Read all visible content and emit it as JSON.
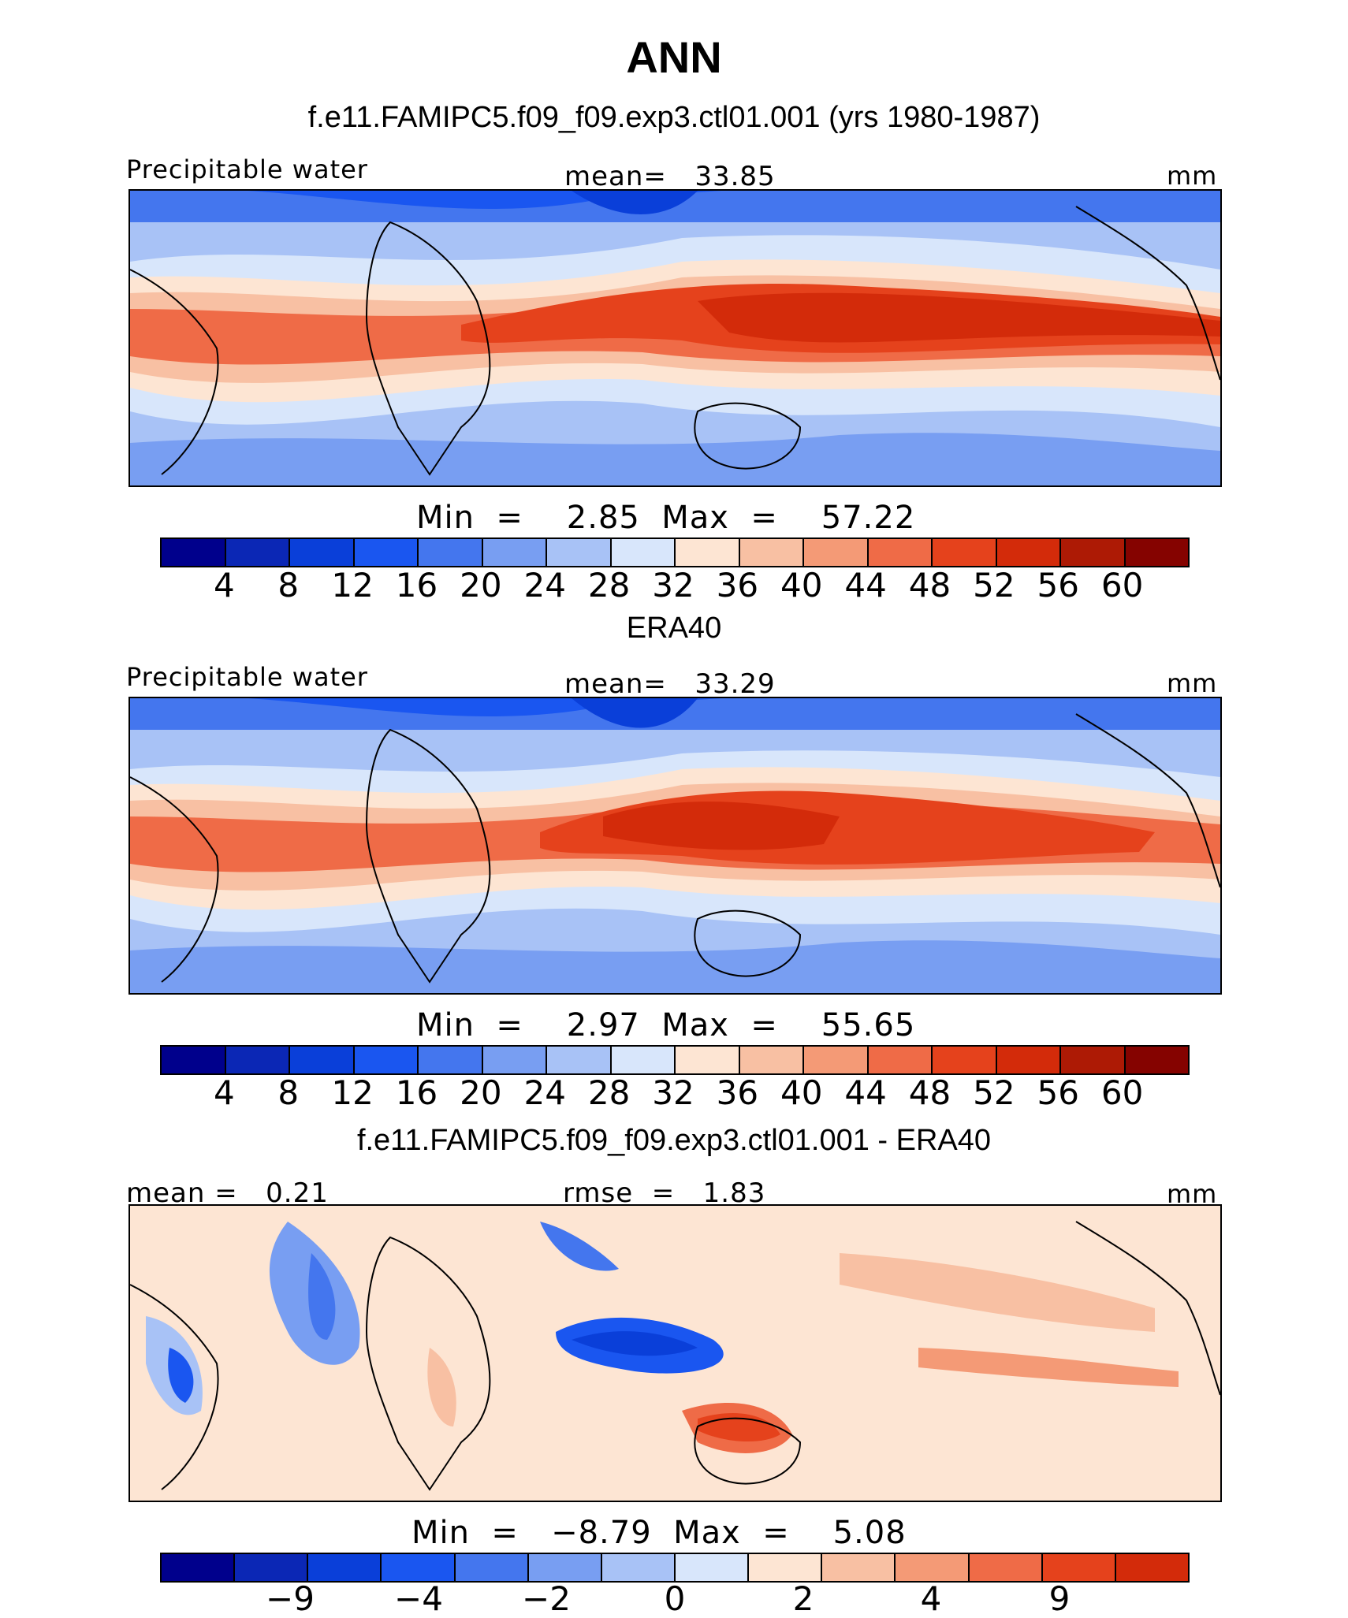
{
  "title": "ANN",
  "panels": [
    {
      "subtitle": "f.e11.FAMIPC5.f09_f09.exp3.ctl01.001 (yrs 1980-1987)",
      "left_label": "Precipitable water",
      "center_label": "mean=   33.85",
      "right_label": "mm",
      "minmax": "Min  =    2.85  Max  =    57.22",
      "colors": [
        "#00008c",
        "#0b27b5",
        "#0a3fd9",
        "#1a56f0",
        "#4476ee",
        "#789ef2",
        "#a8c2f6",
        "#d8e6fb",
        "#fde5d3",
        "#f8c0a3",
        "#f49a76",
        "#ef6b47",
        "#e5421c",
        "#d32b0a",
        "#ad1a05",
        "#850300"
      ],
      "ticks": [
        "4",
        "8",
        "12",
        "16",
        "20",
        "24",
        "28",
        "32",
        "36",
        "40",
        "44",
        "48",
        "52",
        "56",
        "60"
      ]
    },
    {
      "subtitle": "ERA40",
      "left_label": "Precipitable water",
      "center_label": "mean=   33.29",
      "right_label": "mm",
      "minmax": "Min  =    2.97  Max  =    55.65",
      "colors": [
        "#00008c",
        "#0b27b5",
        "#0a3fd9",
        "#1a56f0",
        "#4476ee",
        "#789ef2",
        "#a8c2f6",
        "#d8e6fb",
        "#fde5d3",
        "#f8c0a3",
        "#f49a76",
        "#ef6b47",
        "#e5421c",
        "#d32b0a",
        "#ad1a05",
        "#850300"
      ],
      "ticks": [
        "4",
        "8",
        "12",
        "16",
        "20",
        "24",
        "28",
        "32",
        "36",
        "40",
        "44",
        "48",
        "52",
        "56",
        "60"
      ]
    },
    {
      "subtitle": "f.e11.FAMIPC5.f09_f09.exp3.ctl01.001 - ERA40",
      "left_label": "mean =   0.21",
      "center_label": "rmse  =   1.83",
      "right_label": "mm",
      "minmax": "Min  =   −8.79  Max  =    5.08",
      "colors": [
        "#00008c",
        "#0b27b5",
        "#0a3fd9",
        "#1a56f0",
        "#4476ee",
        "#789ef2",
        "#a8c2f6",
        "#d8e6fb",
        "#fde5d3",
        "#f8c0a3",
        "#f49a76",
        "#ef6b47",
        "#e5421c",
        "#d32b0a",
        "#ad1a05",
        "#850300"
      ],
      "ticks": [
        "−9",
        "−4",
        "−2",
        "0",
        "2",
        "4",
        "9"
      ]
    }
  ]
}
